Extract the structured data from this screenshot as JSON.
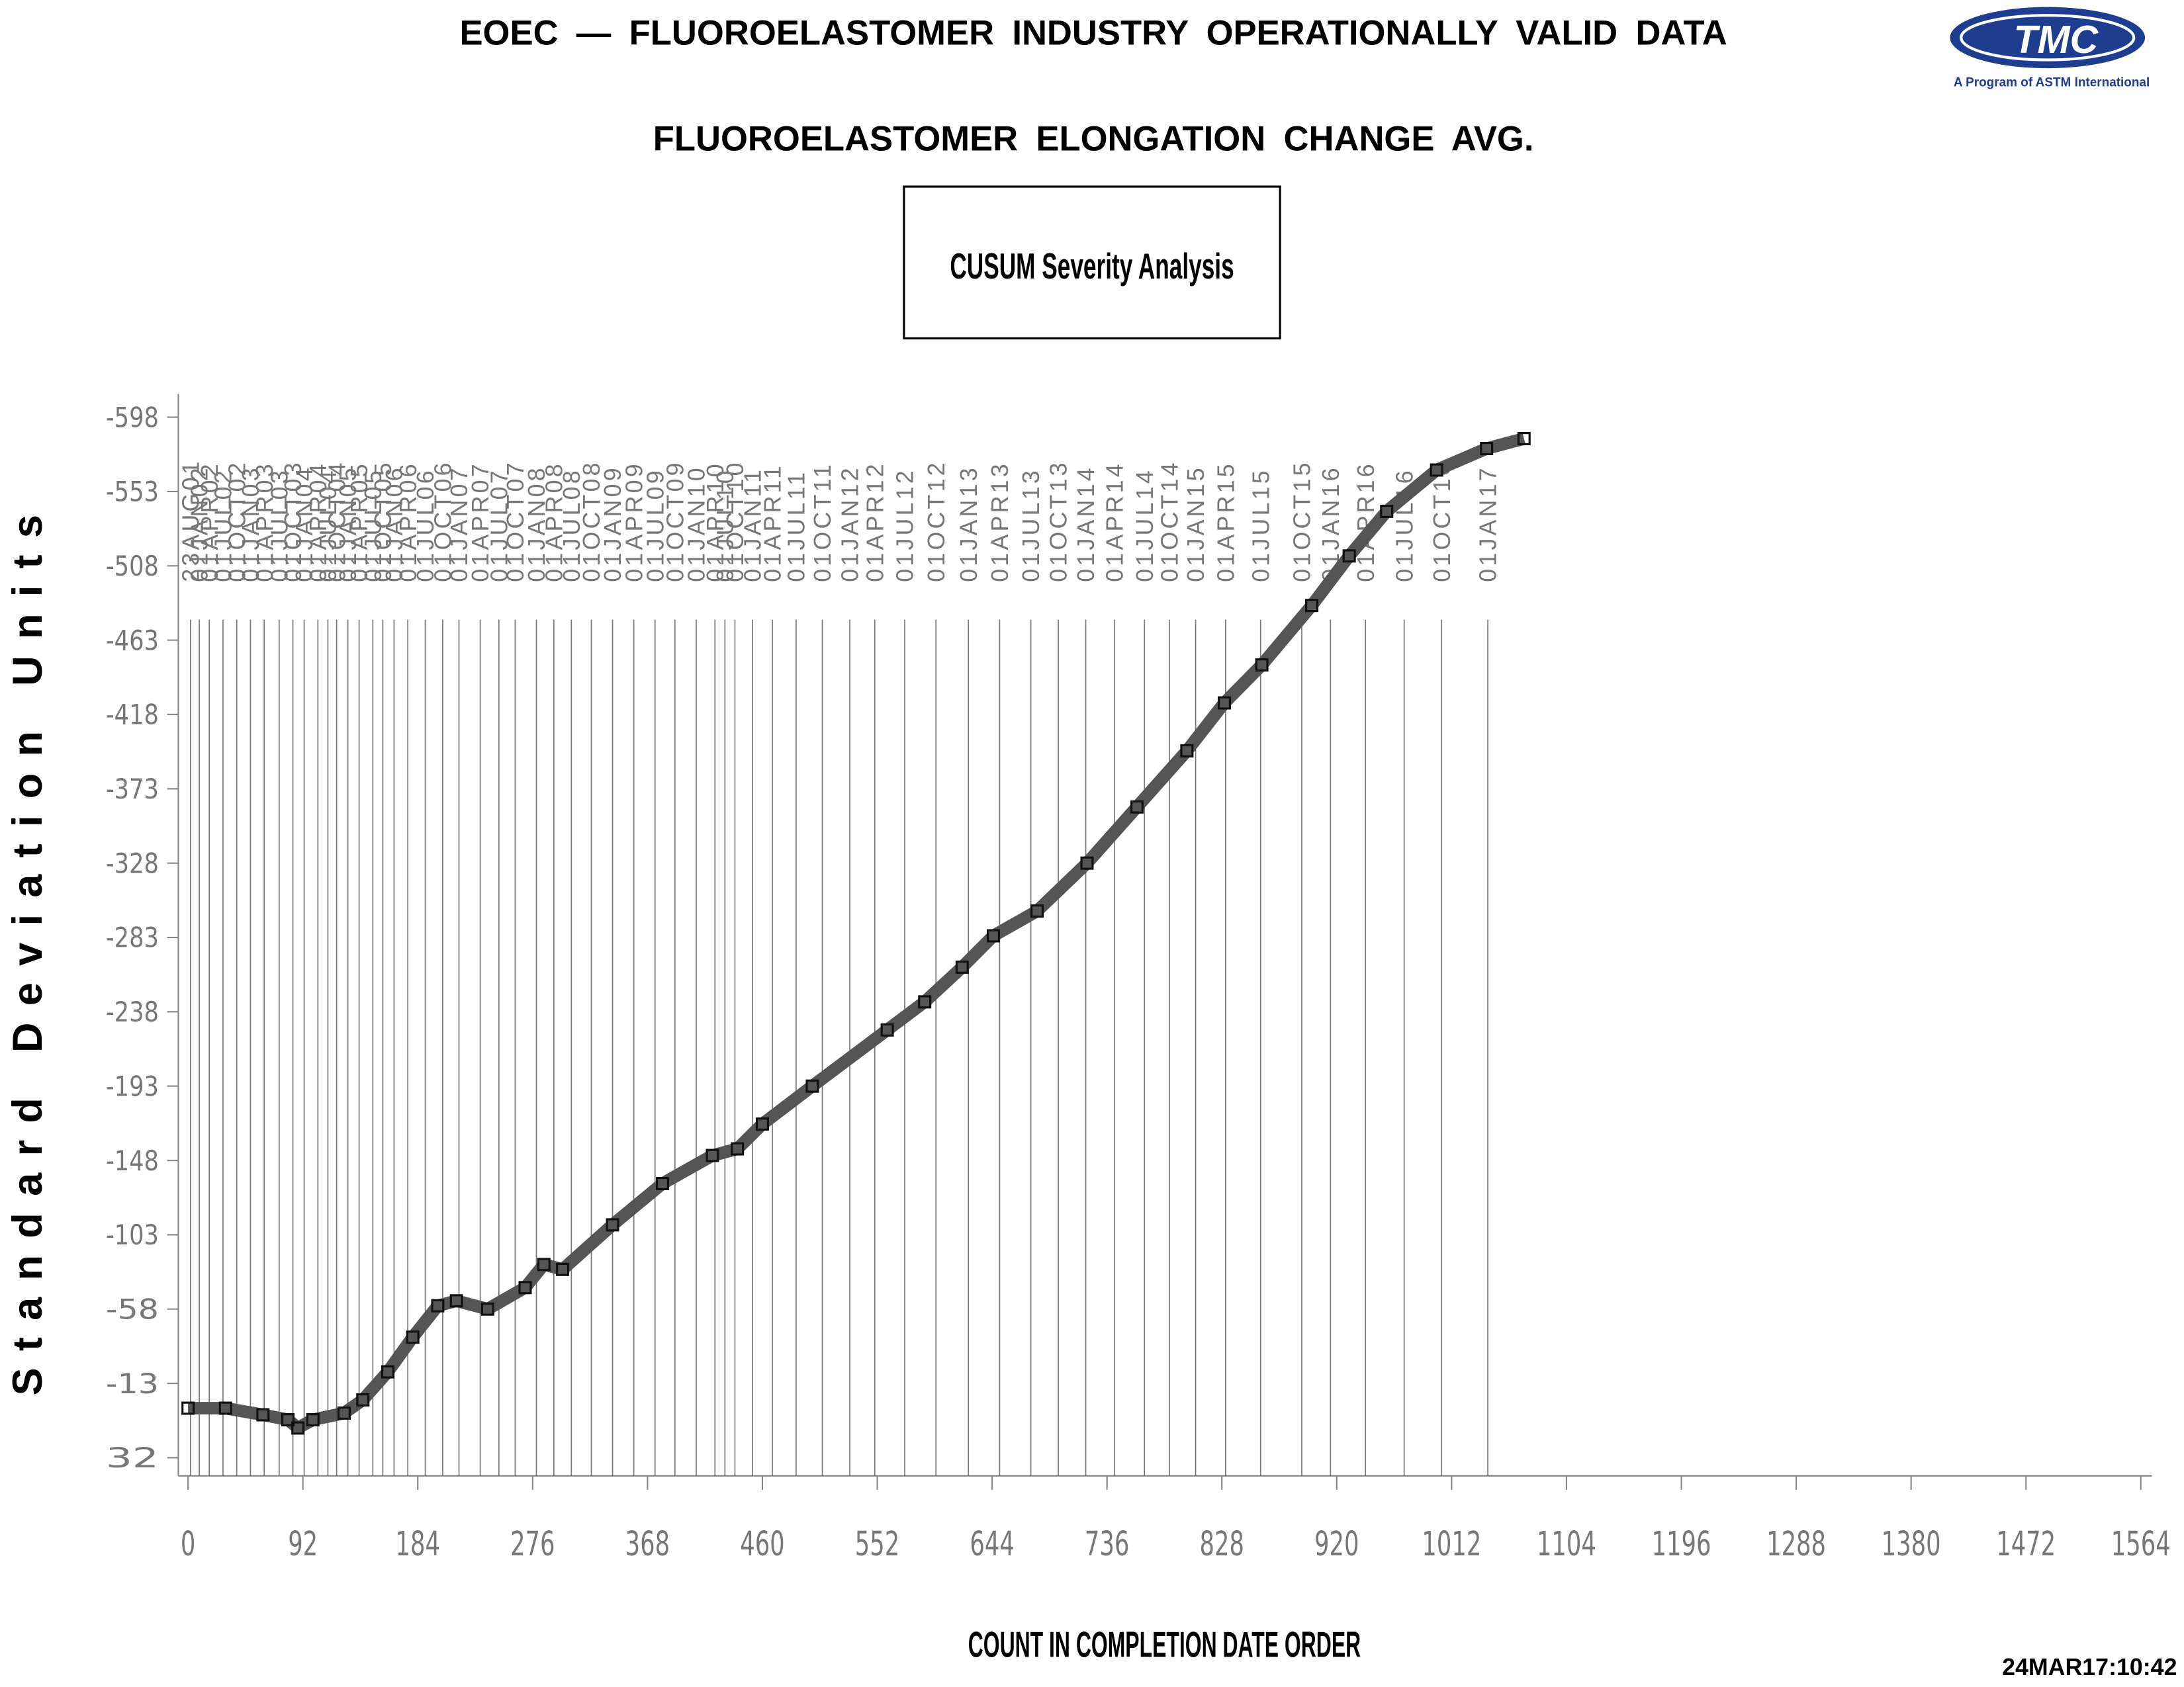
{
  "chart_data": {
    "type": "line",
    "title": "EOEC — FLUOROELASTOMER INDUSTRY OPERATIONALLY VALID DATA",
    "subtitle": "FLUOROELASTOMER ELONGATION CHANGE AVG.",
    "annotation": "CUSUM Severity Analysis",
    "logo_text": "TMC",
    "logo_caption": "A Program of ASTM International",
    "timestamp": "24MAR17:10:42",
    "x_label": "COUNT IN COMPLETION DATE ORDER",
    "y_label": "Standard Deviation Units",
    "xlim": [
      0,
      1564
    ],
    "xticks": [
      0,
      92,
      184,
      276,
      368,
      460,
      552,
      644,
      736,
      828,
      920,
      1012,
      1104,
      1196,
      1288,
      1380,
      1472,
      1564
    ],
    "ylim": [
      43,
      -612
    ],
    "yticks": [
      32,
      -13,
      -58,
      -103,
      -148,
      -193,
      -238,
      -283,
      -328,
      -373,
      -418,
      -463,
      -508,
      -553,
      -598
    ],
    "series": [
      {
        "name": "CUSUM",
        "color": "#555555",
        "x": [
          0,
          30,
          60,
          80,
          88,
          100,
          125,
          140,
          160,
          180,
          200,
          215,
          240,
          270,
          285,
          300,
          340,
          380,
          420,
          440,
          460,
          500,
          560,
          590,
          620,
          645,
          680,
          720,
          760,
          800,
          830,
          860,
          900,
          930,
          960,
          1000,
          1040,
          1070
        ],
        "values": [
          2,
          2,
          6,
          9,
          14,
          9,
          5,
          -3,
          -20,
          -41,
          -60,
          -63,
          -58,
          -71,
          -85,
          -82,
          -109,
          -134,
          -151,
          -155,
          -170,
          -193,
          -227,
          -244,
          -265,
          -284,
          -299,
          -328,
          -362,
          -396,
          -425,
          -448,
          -484,
          -514,
          -541,
          -566,
          -579,
          -585
        ]
      }
    ],
    "date_markers": {
      "labels": [
        "23AUG01",
        "01JAN02",
        "01APR02",
        "01JUL02",
        "01OCT02",
        "01JAN03",
        "01APR03",
        "01JUL03",
        "01OCT03",
        "01JAN04",
        "01APR04",
        "01JUL04",
        "01OCT04",
        "01JAN05",
        "01APR05",
        "01JUL05",
        "01OCT05",
        "01JAN06",
        "01APR06",
        "01JUL06",
        "01OCT06",
        "01JAN07",
        "01APR07",
        "01JUL07",
        "01OCT07",
        "01JAN08",
        "01APR08",
        "01JUL08",
        "01OCT08",
        "01JAN09",
        "01APR09",
        "01JUL09",
        "01OCT09",
        "01JAN10",
        "01APR10",
        "01JUL10",
        "01OCT10",
        "01JAN11",
        "01APR11",
        "01JUL11",
        "01OCT11",
        "01JAN12",
        "01APR12",
        "01JUL12",
        "01OCT12",
        "01JAN13",
        "01APR13",
        "01JUL13",
        "01OCT13",
        "01JAN14",
        "01APR14",
        "01JUL14",
        "01OCT14",
        "01JAN15",
        "01APR15",
        "01JUL15",
        "01OCT15",
        "01JAN16",
        "01APR16",
        "01JUL16",
        "01OCT16",
        "01JAN17"
      ],
      "x": [
        2,
        9,
        17,
        28,
        39,
        50,
        61,
        73,
        84,
        93,
        104,
        112,
        119,
        128,
        137,
        148,
        156,
        165,
        176,
        190,
        204,
        217,
        234,
        249,
        262,
        279,
        293,
        307,
        323,
        340,
        357,
        374,
        390,
        407,
        422,
        430,
        438,
        452,
        468,
        487,
        508,
        530,
        550,
        574,
        599,
        625,
        650,
        675,
        697,
        719,
        742,
        766,
        786,
        807,
        831,
        859,
        892,
        915,
        943,
        974,
        1004,
        1041
      ]
    }
  }
}
